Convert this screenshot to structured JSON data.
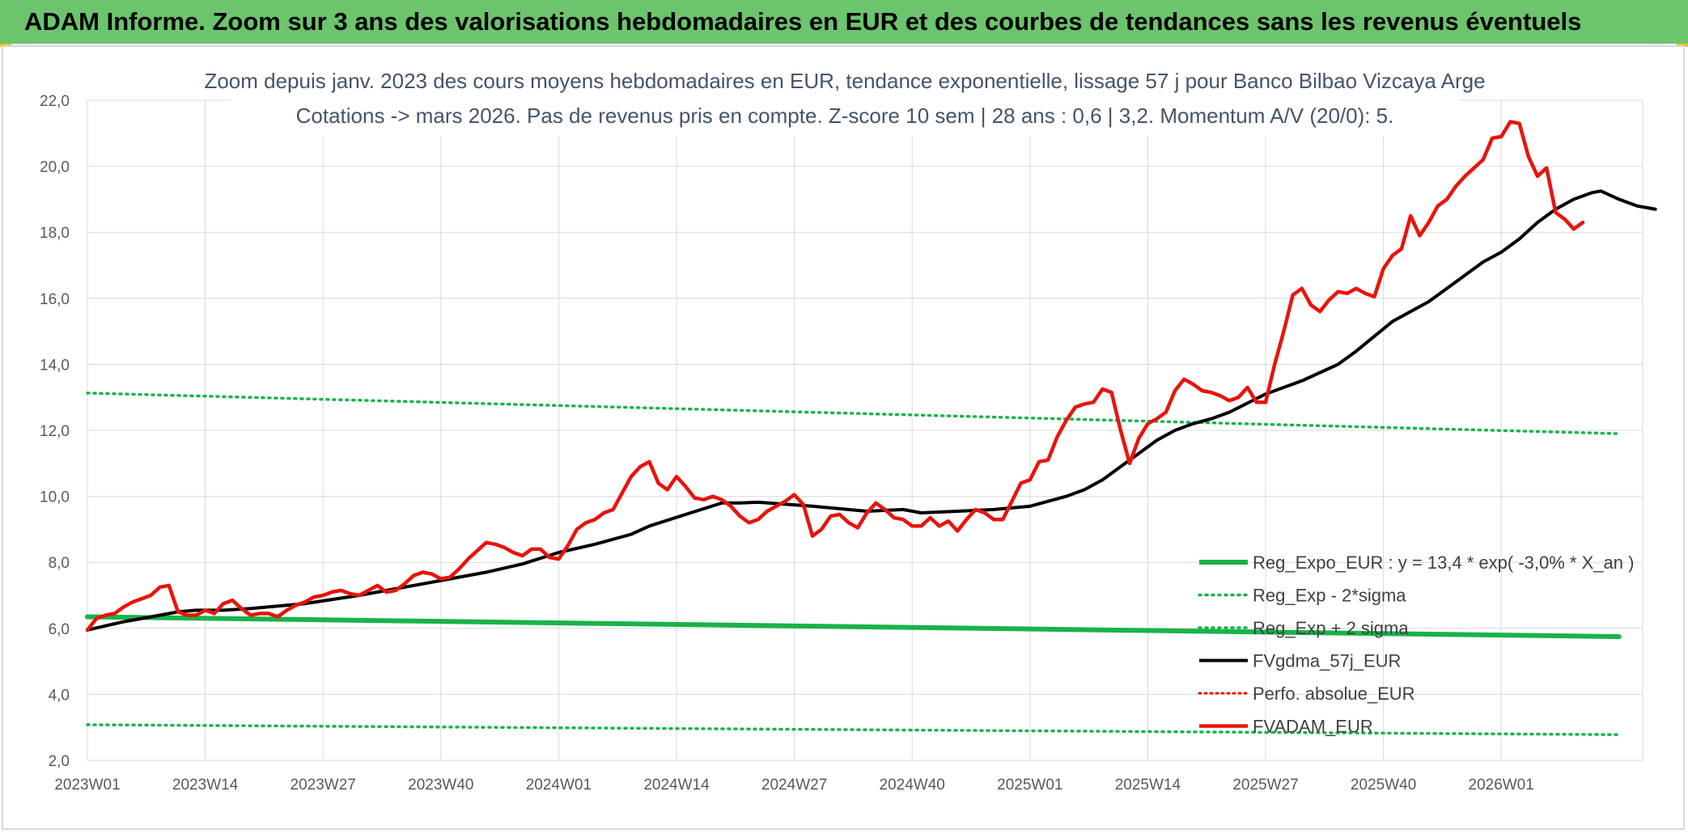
{
  "banner": {
    "title": "ADAM Informe. Zoom sur 3 ans des valorisations hebdomadaires en EUR et des courbes de tendances sans les revenus éventuels"
  },
  "colors": {
    "banner": "#6cc46c",
    "regression": "#19b34a",
    "bands": "#19b34a",
    "moving_average": "#000000",
    "perf_absolue": "#e8140c",
    "adam_price": "#e8140c",
    "grid": "#d9d9d9"
  },
  "chart_data": {
    "type": "line",
    "title": "Zoom depuis janv. 2023 des cours moyens hebdomadaires en EUR, tendance exponentielle, lissage 57 j pour Banco Bilbao Vizcaya Arge",
    "subtitle": "Cotations -> mars 2026. Pas de revenus pris en compte. Z-score 10 sem | 28 ans : 0,6 | 3,2. Momentum A/V (20/0): 5.",
    "xlabel": "",
    "ylabel": "",
    "ylim": [
      2.0,
      22.0
    ],
    "yticks": [
      "2,0",
      "4,0",
      "6,0",
      "8,0",
      "10,0",
      "12,0",
      "14,0",
      "16,0",
      "18,0",
      "20,0",
      "22,0"
    ],
    "x_tick_labels": [
      "2023W01",
      "2023W14",
      "2023W27",
      "2023W40",
      "2024W01",
      "2024W14",
      "2024W27",
      "2024W40",
      "2025W01",
      "2025W14",
      "2025W27",
      "2025W40",
      "2026W01"
    ],
    "grid": true,
    "legend_position": "bottom-right",
    "series": [
      {
        "name": "Reg_Expo_EUR : y = 13,4 * exp( -3,0% *  X_an )",
        "style": "solid-thick",
        "points": [
          [
            0,
            6.35
          ],
          [
            169,
            5.75
          ]
        ]
      },
      {
        "name": "Reg_Exp - 2*sigma",
        "style": "dotted",
        "points": [
          [
            0,
            3.08
          ],
          [
            169,
            2.78
          ]
        ]
      },
      {
        "name": "Reg_Exp + 2 sigma",
        "style": "dotted",
        "points": [
          [
            0,
            13.13
          ],
          [
            169,
            11.9
          ]
        ]
      },
      {
        "name": "FVgdma_57j_EUR",
        "style": "solid",
        "points": [
          [
            0,
            5.95
          ],
          [
            4,
            6.2
          ],
          [
            8,
            6.4
          ],
          [
            10,
            6.5
          ],
          [
            12,
            6.55
          ],
          [
            15,
            6.55
          ],
          [
            18,
            6.6
          ],
          [
            24,
            6.75
          ],
          [
            30,
            7.0
          ],
          [
            36,
            7.3
          ],
          [
            40,
            7.5
          ],
          [
            44,
            7.7
          ],
          [
            48,
            7.95
          ],
          [
            52,
            8.3
          ],
          [
            56,
            8.55
          ],
          [
            60,
            8.85
          ],
          [
            62,
            9.1
          ],
          [
            66,
            9.45
          ],
          [
            70,
            9.8
          ],
          [
            72,
            9.8
          ],
          [
            74,
            9.82
          ],
          [
            80,
            9.7
          ],
          [
            86,
            9.55
          ],
          [
            90,
            9.6
          ],
          [
            92,
            9.5
          ],
          [
            96,
            9.55
          ],
          [
            100,
            9.6
          ],
          [
            104,
            9.7
          ],
          [
            106,
            9.85
          ],
          [
            108,
            10.0
          ],
          [
            110,
            10.2
          ],
          [
            112,
            10.5
          ],
          [
            114,
            10.9
          ],
          [
            116,
            11.3
          ],
          [
            118,
            11.7
          ],
          [
            120,
            12.0
          ],
          [
            122,
            12.2
          ],
          [
            124,
            12.35
          ],
          [
            126,
            12.55
          ],
          [
            130,
            13.1
          ],
          [
            134,
            13.5
          ],
          [
            138,
            14.0
          ],
          [
            140,
            14.4
          ],
          [
            142,
            14.85
          ],
          [
            144,
            15.3
          ],
          [
            146,
            15.6
          ],
          [
            148,
            15.9
          ],
          [
            150,
            16.3
          ],
          [
            152,
            16.7
          ],
          [
            154,
            17.1
          ],
          [
            156,
            17.4
          ],
          [
            158,
            17.8
          ],
          [
            160,
            18.3
          ],
          [
            162,
            18.7
          ],
          [
            164,
            19.0
          ],
          [
            166,
            19.2
          ],
          [
            167,
            19.25
          ],
          [
            169,
            19.0
          ],
          [
            171,
            18.8
          ],
          [
            173,
            18.7
          ]
        ]
      },
      {
        "name": "Perfo. absolue_EUR",
        "style": "dotted",
        "points": []
      },
      {
        "name": "FVADAM_EUR",
        "style": "solid-thick",
        "points": [
          [
            0,
            5.95
          ],
          [
            1,
            6.3
          ],
          [
            2,
            6.4
          ],
          [
            3,
            6.45
          ],
          [
            4,
            6.65
          ],
          [
            5,
            6.8
          ],
          [
            6,
            6.9
          ],
          [
            7,
            7.0
          ],
          [
            8,
            7.25
          ],
          [
            9,
            7.3
          ],
          [
            10,
            6.5
          ],
          [
            11,
            6.4
          ],
          [
            12,
            6.4
          ],
          [
            13,
            6.55
          ],
          [
            14,
            6.45
          ],
          [
            15,
            6.75
          ],
          [
            16,
            6.85
          ],
          [
            17,
            6.6
          ],
          [
            18,
            6.4
          ],
          [
            19,
            6.45
          ],
          [
            20,
            6.45
          ],
          [
            21,
            6.35
          ],
          [
            22,
            6.55
          ],
          [
            23,
            6.7
          ],
          [
            24,
            6.8
          ],
          [
            25,
            6.95
          ],
          [
            26,
            7.0
          ],
          [
            27,
            7.1
          ],
          [
            28,
            7.15
          ],
          [
            29,
            7.05
          ],
          [
            30,
            7.0
          ],
          [
            31,
            7.15
          ],
          [
            32,
            7.3
          ],
          [
            33,
            7.1
          ],
          [
            34,
            7.15
          ],
          [
            35,
            7.35
          ],
          [
            36,
            7.6
          ],
          [
            37,
            7.7
          ],
          [
            38,
            7.65
          ],
          [
            39,
            7.5
          ],
          [
            40,
            7.55
          ],
          [
            41,
            7.8
          ],
          [
            42,
            8.1
          ],
          [
            43,
            8.35
          ],
          [
            44,
            8.6
          ],
          [
            45,
            8.55
          ],
          [
            46,
            8.45
          ],
          [
            47,
            8.3
          ],
          [
            48,
            8.2
          ],
          [
            49,
            8.4
          ],
          [
            50,
            8.4
          ],
          [
            51,
            8.15
          ],
          [
            52,
            8.1
          ],
          [
            53,
            8.5
          ],
          [
            54,
            9.0
          ],
          [
            55,
            9.2
          ],
          [
            56,
            9.3
          ],
          [
            57,
            9.5
          ],
          [
            58,
            9.6
          ],
          [
            59,
            10.1
          ],
          [
            60,
            10.6
          ],
          [
            61,
            10.9
          ],
          [
            62,
            11.05
          ],
          [
            63,
            10.4
          ],
          [
            64,
            10.2
          ],
          [
            65,
            10.6
          ],
          [
            66,
            10.3
          ],
          [
            67,
            9.95
          ],
          [
            68,
            9.9
          ],
          [
            69,
            10.0
          ],
          [
            70,
            9.9
          ],
          [
            71,
            9.7
          ],
          [
            72,
            9.4
          ],
          [
            73,
            9.2
          ],
          [
            74,
            9.3
          ],
          [
            75,
            9.55
          ],
          [
            76,
            9.7
          ],
          [
            77,
            9.85
          ],
          [
            78,
            10.05
          ],
          [
            79,
            9.75
          ],
          [
            80,
            8.8
          ],
          [
            81,
            9.0
          ],
          [
            82,
            9.4
          ],
          [
            83,
            9.45
          ],
          [
            84,
            9.2
          ],
          [
            85,
            9.05
          ],
          [
            86,
            9.5
          ],
          [
            87,
            9.8
          ],
          [
            88,
            9.6
          ],
          [
            89,
            9.35
          ],
          [
            90,
            9.3
          ],
          [
            91,
            9.1
          ],
          [
            92,
            9.1
          ],
          [
            93,
            9.35
          ],
          [
            94,
            9.1
          ],
          [
            95,
            9.25
          ],
          [
            96,
            8.95
          ],
          [
            97,
            9.3
          ],
          [
            98,
            9.6
          ],
          [
            99,
            9.5
          ],
          [
            100,
            9.3
          ],
          [
            101,
            9.3
          ],
          [
            102,
            9.85
          ],
          [
            103,
            10.4
          ],
          [
            104,
            10.5
          ],
          [
            105,
            11.05
          ],
          [
            106,
            11.1
          ],
          [
            107,
            11.8
          ],
          [
            108,
            12.3
          ],
          [
            109,
            12.7
          ],
          [
            110,
            12.8
          ],
          [
            111,
            12.85
          ],
          [
            112,
            13.25
          ],
          [
            113,
            13.15
          ],
          [
            114,
            12.0
          ],
          [
            115,
            11.0
          ],
          [
            116,
            11.75
          ],
          [
            117,
            12.2
          ],
          [
            118,
            12.35
          ],
          [
            119,
            12.55
          ],
          [
            120,
            13.2
          ],
          [
            121,
            13.55
          ],
          [
            122,
            13.4
          ],
          [
            123,
            13.2
          ],
          [
            124,
            13.15
          ],
          [
            125,
            13.05
          ],
          [
            126,
            12.9
          ],
          [
            127,
            13.0
          ],
          [
            128,
            13.3
          ],
          [
            129,
            12.85
          ],
          [
            130,
            12.85
          ],
          [
            131,
            14.0
          ],
          [
            132,
            15.0
          ],
          [
            133,
            16.1
          ],
          [
            134,
            16.3
          ],
          [
            135,
            15.8
          ],
          [
            136,
            15.6
          ],
          [
            137,
            15.95
          ],
          [
            138,
            16.2
          ],
          [
            139,
            16.15
          ],
          [
            140,
            16.3
          ],
          [
            141,
            16.15
          ],
          [
            142,
            16.05
          ],
          [
            143,
            16.9
          ],
          [
            144,
            17.3
          ],
          [
            145,
            17.5
          ],
          [
            146,
            18.5
          ],
          [
            147,
            17.9
          ],
          [
            148,
            18.3
          ],
          [
            149,
            18.8
          ],
          [
            150,
            19.0
          ],
          [
            151,
            19.4
          ],
          [
            152,
            19.7
          ],
          [
            153,
            19.95
          ],
          [
            154,
            20.2
          ],
          [
            155,
            20.85
          ],
          [
            156,
            20.9
          ],
          [
            157,
            21.35
          ],
          [
            158,
            21.3
          ],
          [
            159,
            20.3
          ],
          [
            160,
            19.7
          ],
          [
            161,
            19.95
          ],
          [
            162,
            18.6
          ],
          [
            163,
            18.4
          ],
          [
            164,
            18.1
          ],
          [
            165,
            18.3
          ]
        ]
      }
    ]
  }
}
